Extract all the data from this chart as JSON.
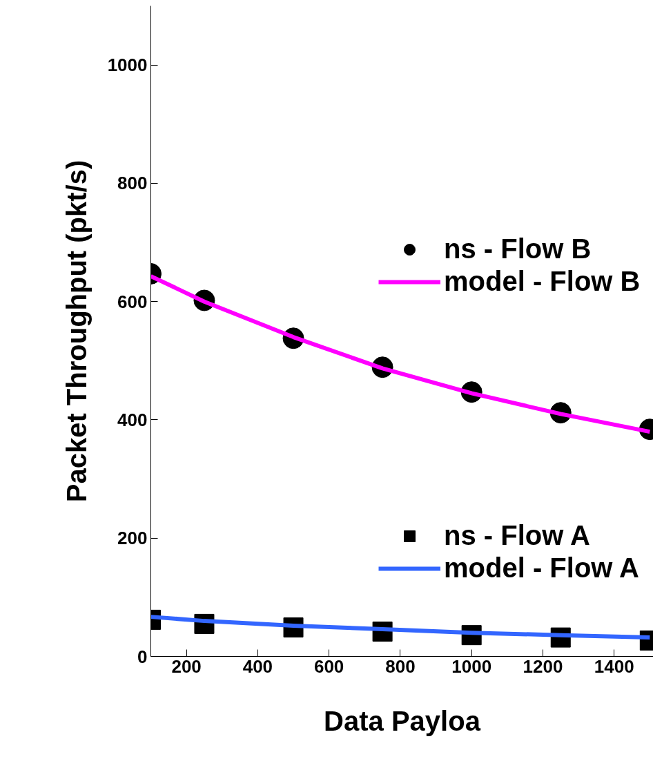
{
  "chart_data": {
    "type": "scatter",
    "xlabel": "Data Payloa",
    "ylabel": "Packet Throughput (pkt/s)",
    "x": [
      100,
      250,
      500,
      750,
      1000,
      1250,
      1500
    ],
    "series": [
      {
        "name": "ns - Flow B",
        "marker": "circle",
        "color": "#000000",
        "values": [
          647,
          602,
          538,
          489,
          447,
          412,
          384
        ]
      },
      {
        "name": "model - Flow B",
        "type": "line",
        "marker": "none",
        "line_style": "solid",
        "color": "#ff00ff",
        "values": [
          643,
          600,
          540,
          487,
          445,
          410,
          380
        ]
      },
      {
        "name": "ns - Flow A",
        "marker": "square",
        "color": "#000000",
        "values": [
          62,
          55,
          49,
          42,
          36,
          32,
          27
        ]
      },
      {
        "name": "model - Flow A",
        "type": "line",
        "marker": "none",
        "line_style": "solid",
        "color": "#3366ff",
        "values": [
          67,
          60,
          52,
          46,
          40,
          36,
          32
        ]
      }
    ],
    "xlim": [
      100,
      1510
    ],
    "ylim": [
      0,
      1100
    ],
    "xticks": [
      200,
      400,
      600,
      800,
      1000,
      1200,
      1400
    ],
    "yticks": [
      0,
      200,
      400,
      600,
      800,
      1000
    ],
    "grid": false,
    "legend": "right"
  }
}
